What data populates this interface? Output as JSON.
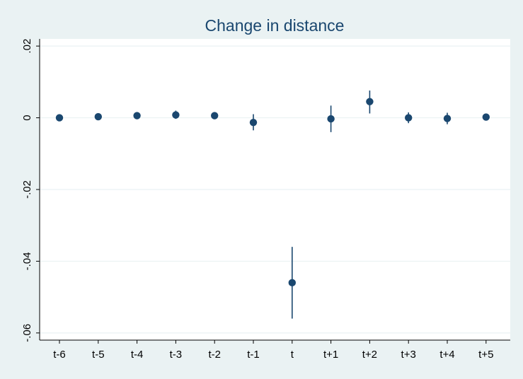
{
  "chart_data": {
    "type": "scatter",
    "title": "Change in distance",
    "xlabel": "",
    "ylabel": "",
    "categories": [
      "t-6",
      "t-5",
      "t-4",
      "t-3",
      "t-2",
      "t-1",
      "t",
      "t+1",
      "t+2",
      "t+3",
      "t+4",
      "t+5"
    ],
    "values": [
      0.0,
      0.0003,
      0.0006,
      0.0008,
      0.0006,
      -0.0013,
      -0.046,
      -0.0003,
      0.0045,
      0.0,
      -0.0002,
      0.0002
    ],
    "ci_low": [
      0.0,
      0.0,
      -0.0004,
      -0.0003,
      -0.0004,
      -0.0035,
      -0.056,
      -0.004,
      0.0012,
      -0.0015,
      -0.0018,
      0.0
    ],
    "ci_high": [
      0.0,
      0.0006,
      0.0016,
      0.002,
      0.0016,
      0.001,
      -0.036,
      0.0034,
      0.0076,
      0.0015,
      0.0014,
      0.0004
    ],
    "ylim": [
      -0.062,
      0.022
    ],
    "yticks": [
      0.02,
      0,
      -0.02,
      -0.04,
      -0.06
    ],
    "ytick_labels": [
      ".02",
      "0",
      "-.02",
      "-.04",
      "-.06"
    ],
    "grid": true,
    "colors": {
      "marker": "#1a476f",
      "grid": "#eaf2f3",
      "plot_bg": "#ffffff",
      "outer_bg": "#eaf2f3"
    }
  }
}
